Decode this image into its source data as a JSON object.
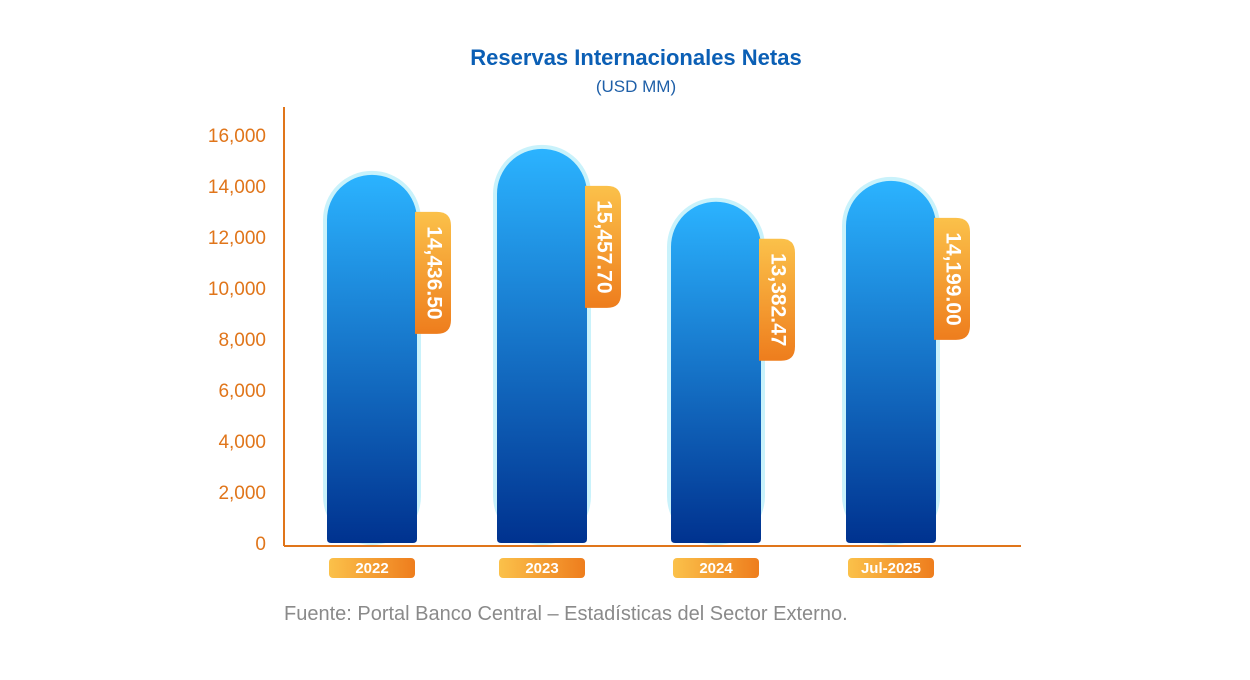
{
  "colors": {
    "title": "#0b5fb5",
    "subtitle": "#1e5fa8",
    "axis": "#e0751a",
    "tick_text": "#e0751a",
    "bar_top": "#2bb3ff",
    "bar_bottom": "#00328f",
    "bar_glow": "#c9f2fb",
    "label_light": "#fbc14a",
    "label_dark": "#ee7d1d",
    "label_text": "#ffffff",
    "source_text": "#8a8a8a"
  },
  "source": "Fuente: Portal Banco Central – Estadísticas del Sector Externo.",
  "chart_data": {
    "type": "bar",
    "title": "Reservas Internacionales Netas",
    "subtitle": "(USD MM)",
    "categories": [
      "2022",
      "2023",
      "2024",
      "Jul-2025"
    ],
    "values": [
      14436.5,
      15457.7,
      13382.47,
      14199.0
    ],
    "data_labels": [
      "14,436.50",
      "15,457.70",
      "13,382.47",
      "14,199.00"
    ],
    "ylim": [
      0,
      16000
    ],
    "yticks": [
      0,
      2000,
      4000,
      6000,
      8000,
      10000,
      12000,
      14000,
      16000
    ],
    "ytick_labels": [
      "0",
      "2,000",
      "4,000",
      "6,000",
      "8,000",
      "10,000",
      "12,000",
      "14,000",
      "16,000"
    ],
    "grid": false,
    "legend": "none"
  }
}
